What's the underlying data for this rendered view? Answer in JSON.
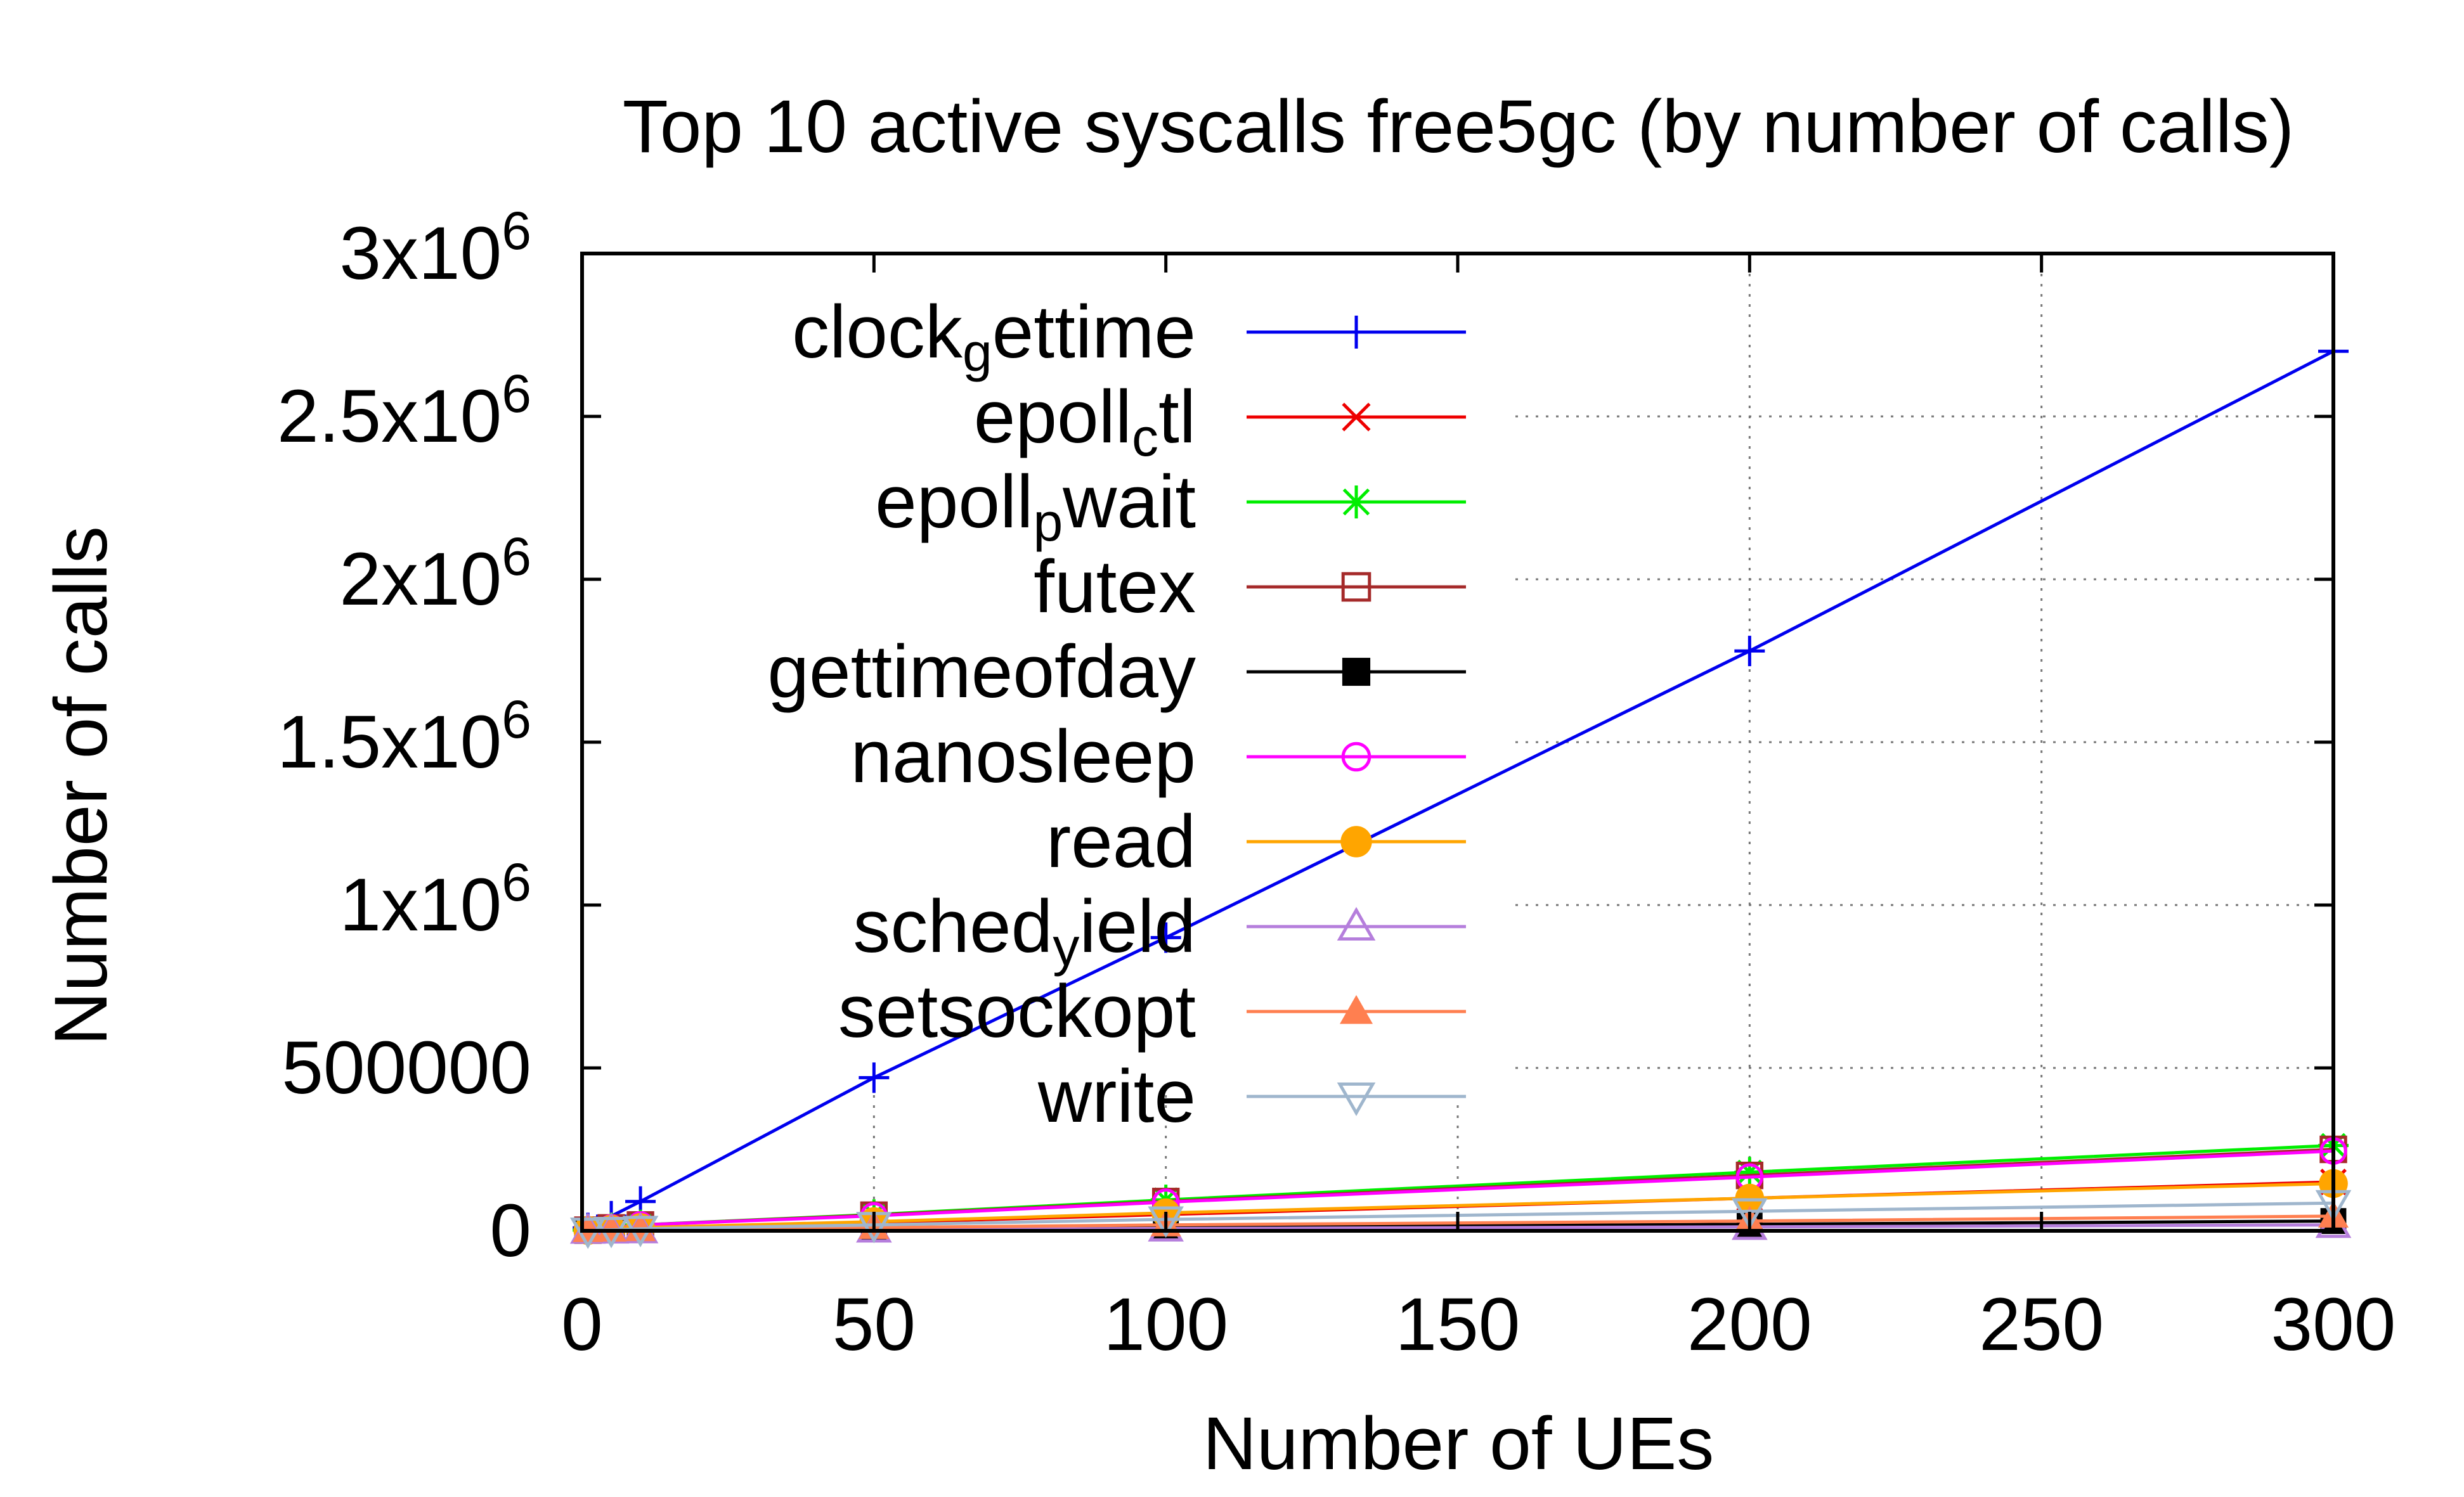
{
  "chart_data": {
    "type": "line",
    "title": "Top 10 active syscalls free5gc (by number of calls)",
    "xlabel": "Number of UEs",
    "ylabel": "Number of calls",
    "xlim": [
      0,
      300
    ],
    "ylim": [
      0,
      3000000
    ],
    "grid": true,
    "legend_position": "top-left",
    "x_ticks": [
      0,
      50,
      100,
      150,
      200,
      250,
      300
    ],
    "x_tick_labels": [
      "0",
      "50",
      "100",
      "150",
      "200",
      "250",
      "300"
    ],
    "y_ticks": [
      {
        "value": 0,
        "mantissa": "0",
        "exponent": ""
      },
      {
        "value": 500000,
        "mantissa": "500000",
        "exponent": ""
      },
      {
        "value": 1000000,
        "mantissa": "1x10",
        "exponent": "6"
      },
      {
        "value": 1500000,
        "mantissa": "1.5x10",
        "exponent": "6"
      },
      {
        "value": 2000000,
        "mantissa": "2x10",
        "exponent": "6"
      },
      {
        "value": 2500000,
        "mantissa": "2.5x10",
        "exponent": "6"
      },
      {
        "value": 3000000,
        "mantissa": "3x10",
        "exponent": "6"
      }
    ],
    "x": [
      1,
      5,
      10,
      50,
      100,
      200,
      300
    ],
    "series": [
      {
        "name": "clock_gettime",
        "label_main": "clock",
        "label_sub": "g",
        "label_rest": "ettime",
        "color": "#0000ee",
        "marker": "plus",
        "values": [
          9000,
          45000,
          90000,
          470000,
          900000,
          1780000,
          2700000
        ]
      },
      {
        "name": "epoll_ctl",
        "label_main": "epoll",
        "label_sub": "c",
        "label_rest": "tl",
        "color": "#ee0000",
        "marker": "x",
        "values": [
          1000,
          3000,
          5000,
          25000,
          50000,
          100000,
          150000
        ]
      },
      {
        "name": "epoll_pwait",
        "label_main": "epoll",
        "label_sub": "p",
        "label_rest": "wait",
        "color": "#00ee00",
        "marker": "star",
        "values": [
          2000,
          9000,
          18000,
          50000,
          95000,
          180000,
          262000
        ]
      },
      {
        "name": "futex",
        "label_main": "futex",
        "label_sub": "",
        "label_rest": "",
        "color": "#a52a2a",
        "marker": "square-open",
        "values": [
          2000,
          9000,
          18000,
          48000,
          90000,
          170000,
          250000
        ]
      },
      {
        "name": "gettimeofday",
        "label_main": "gettimeofday",
        "label_sub": "",
        "label_rest": "",
        "color": "#000000",
        "marker": "square-filled",
        "values": [
          300,
          1000,
          2000,
          6000,
          11000,
          20000,
          30000
        ]
      },
      {
        "name": "nanosleep",
        "label_main": "nanosleep",
        "label_sub": "",
        "label_rest": "",
        "color": "#ff00ff",
        "marker": "circle-open",
        "values": [
          2000,
          9000,
          18000,
          46000,
          88000,
          165000,
          245000
        ]
      },
      {
        "name": "read",
        "label_main": "read",
        "label_sub": "",
        "label_rest": "",
        "color": "#ffa500",
        "marker": "circle-filled",
        "values": [
          1000,
          5000,
          10000,
          28000,
          55000,
          100000,
          145000
        ]
      },
      {
        "name": "sched_yield",
        "label_main": "sched",
        "label_sub": "y",
        "label_rest": "ield",
        "color": "#b57edc",
        "marker": "triangle-open",
        "values": [
          200,
          800,
          1500,
          4000,
          7000,
          12000,
          18000
        ]
      },
      {
        "name": "setsockopt",
        "label_main": "setsockopt",
        "label_sub": "",
        "label_rest": "",
        "color": "#ff7f50",
        "marker": "triangle-filled",
        "values": [
          500,
          2000,
          3500,
          10000,
          18000,
          30000,
          45000
        ]
      },
      {
        "name": "write",
        "label_main": "write",
        "label_sub": "",
        "label_rest": "",
        "color": "#9fb6cd",
        "marker": "triangle-down-open",
        "values": [
          700,
          3000,
          6000,
          18000,
          35000,
          60000,
          85000
        ]
      }
    ]
  }
}
